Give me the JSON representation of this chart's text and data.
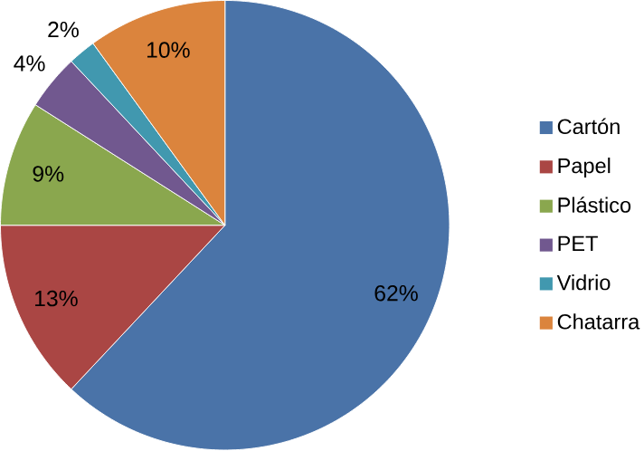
{
  "chart_data": {
    "type": "pie",
    "categories": [
      "Cartón",
      "Papel",
      "Plástico",
      "PET",
      "Vidrio",
      "Chatarra"
    ],
    "values": [
      62,
      13,
      9,
      4,
      2,
      10
    ],
    "colors": [
      "#4a73a8",
      "#aa4644",
      "#8aa74e",
      "#71588f",
      "#4198af",
      "#db843d"
    ],
    "value_labels": [
      "62%",
      "13%",
      "9%",
      "4%",
      "2%",
      "10%"
    ],
    "legend": "right"
  }
}
